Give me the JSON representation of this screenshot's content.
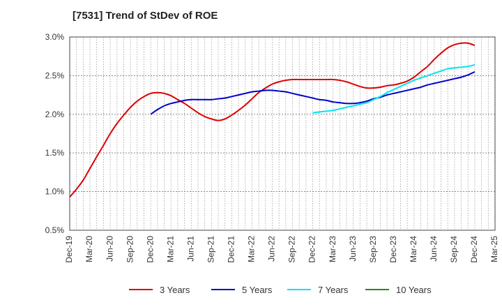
{
  "chart_data": {
    "type": "line",
    "title": "[7531]  Trend of StDev of ROE",
    "xlabel": "",
    "ylabel": "",
    "categories": [
      "Dec-19",
      "Mar-20",
      "Jun-20",
      "Sep-20",
      "Dec-20",
      "Mar-21",
      "Jun-21",
      "Sep-21",
      "Dec-21",
      "Mar-22",
      "Jun-22",
      "Sep-22",
      "Dec-22",
      "Mar-23",
      "Jun-23",
      "Sep-23",
      "Dec-23",
      "Mar-24",
      "Jun-24",
      "Sep-24",
      "Dec-24",
      "Mar-25"
    ],
    "ylim": [
      0.5,
      3.0
    ],
    "yticks": [
      "0.5%",
      "1.0%",
      "1.5%",
      "2.0%",
      "2.5%",
      "3.0%"
    ],
    "ytick_values": [
      0.5,
      1.0,
      1.5,
      2.0,
      2.5,
      3.0
    ],
    "grid": true,
    "legend_position": "bottom",
    "series": [
      {
        "name": "3 Years",
        "color": "#dd0000",
        "x": [
          0,
          0.33,
          0.67,
          1,
          1.33,
          1.67,
          2,
          2.33,
          2.67,
          3,
          3.33,
          3.67,
          4,
          4.33,
          4.67,
          5,
          5.33,
          5.67,
          6,
          6.33,
          6.67,
          7,
          7.33,
          7.67,
          8,
          8.33,
          8.67,
          9,
          9.33,
          9.67,
          10,
          10.33,
          10.67,
          11,
          11.33,
          11.67,
          12,
          12.33,
          12.67,
          13,
          13.33,
          13.67,
          14,
          14.33,
          14.67,
          15,
          15.33,
          15.67,
          16,
          16.33,
          16.67,
          17,
          17.33,
          17.67,
          18,
          18.33,
          18.67,
          19,
          19.33,
          19.67,
          20
        ],
        "values": [
          0.93,
          1.03,
          1.15,
          1.3,
          1.45,
          1.6,
          1.75,
          1.88,
          1.99,
          2.09,
          2.17,
          2.23,
          2.27,
          2.28,
          2.27,
          2.24,
          2.19,
          2.14,
          2.08,
          2.02,
          1.97,
          1.94,
          1.92,
          1.94,
          1.99,
          2.05,
          2.12,
          2.2,
          2.28,
          2.34,
          2.39,
          2.42,
          2.44,
          2.45,
          2.45,
          2.45,
          2.45,
          2.45,
          2.45,
          2.45,
          2.44,
          2.42,
          2.39,
          2.36,
          2.34,
          2.34,
          2.35,
          2.37,
          2.38,
          2.4,
          2.43,
          2.48,
          2.55,
          2.62,
          2.71,
          2.79,
          2.86,
          2.9,
          2.92,
          2.92,
          2.89
        ]
      },
      {
        "name": "5 Years",
        "color": "#0000cc",
        "x": [
          4,
          4.33,
          4.67,
          5,
          5.33,
          5.67,
          6,
          6.33,
          6.67,
          7,
          7.33,
          7.67,
          8,
          8.33,
          8.67,
          9,
          9.33,
          9.67,
          10,
          10.33,
          10.67,
          11,
          11.33,
          11.67,
          12,
          12.33,
          12.67,
          13,
          13.33,
          13.67,
          14,
          14.33,
          14.67,
          15,
          15.33,
          15.67,
          16,
          16.33,
          16.67,
          17,
          17.33,
          17.67,
          18,
          18.33,
          18.67,
          19,
          19.33,
          19.67,
          20
        ],
        "values": [
          2.0,
          2.06,
          2.11,
          2.14,
          2.16,
          2.18,
          2.19,
          2.19,
          2.19,
          2.19,
          2.2,
          2.21,
          2.23,
          2.25,
          2.27,
          2.29,
          2.3,
          2.31,
          2.31,
          2.3,
          2.29,
          2.27,
          2.25,
          2.23,
          2.21,
          2.19,
          2.18,
          2.16,
          2.15,
          2.14,
          2.14,
          2.15,
          2.17,
          2.2,
          2.22,
          2.25,
          2.27,
          2.29,
          2.31,
          2.33,
          2.35,
          2.38,
          2.4,
          2.42,
          2.44,
          2.46,
          2.48,
          2.51,
          2.55
        ]
      },
      {
        "name": "7 Years",
        "color": "#00e5ee",
        "x": [
          12,
          12.33,
          12.67,
          13,
          13.33,
          13.67,
          14,
          14.33,
          14.67,
          15,
          15.33,
          15.67,
          16,
          16.33,
          16.67,
          17,
          17.33,
          17.67,
          18,
          18.33,
          18.67,
          19,
          19.33,
          19.67,
          20
        ],
        "values": [
          2.02,
          2.03,
          2.04,
          2.05,
          2.07,
          2.09,
          2.11,
          2.13,
          2.15,
          2.19,
          2.23,
          2.28,
          2.32,
          2.36,
          2.4,
          2.44,
          2.47,
          2.5,
          2.53,
          2.56,
          2.59,
          2.6,
          2.61,
          2.62,
          2.64
        ]
      },
      {
        "name": "10 Years",
        "color": "#228b22",
        "x": [],
        "values": []
      }
    ]
  }
}
